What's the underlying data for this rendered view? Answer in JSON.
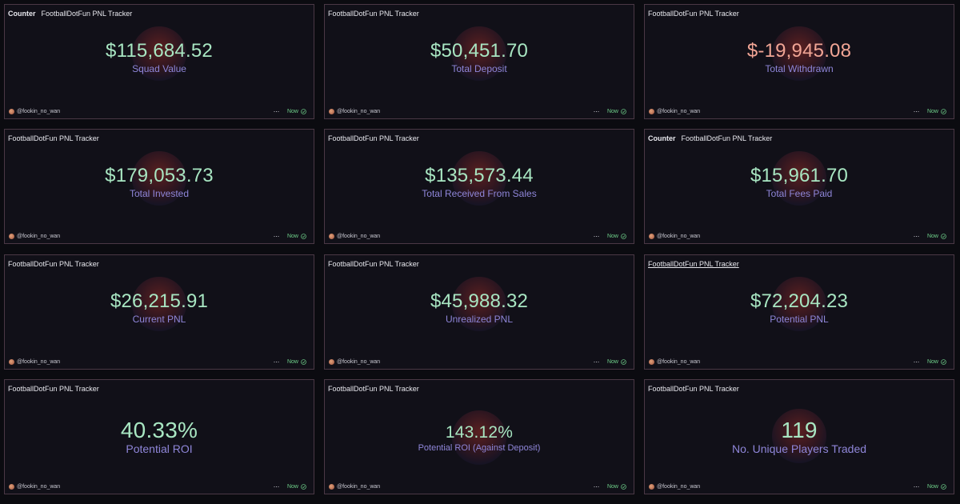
{
  "cards": [
    {
      "prefix": "Counter",
      "title": "FootballDotFun PNL Tracker",
      "value": "$115,684.52",
      "label": "Squad Value",
      "user": "@fookin_no_wan",
      "status": "Now"
    },
    {
      "prefix": "",
      "title": "FootballDotFun PNL Tracker",
      "value": "$50,451.70",
      "label": "Total Deposit",
      "user": "@fookin_no_wan",
      "status": "Now"
    },
    {
      "prefix": "",
      "title": "FootballDotFun PNL Tracker",
      "value": "$-19,945.08",
      "label": "Total Withdrawn",
      "user": "@fookin_no_wan",
      "status": "Now"
    },
    {
      "prefix": "",
      "title": "FootballDotFun PNL Tracker",
      "value": "$179,053.73",
      "label": "Total Invested",
      "user": "@fookin_no_wan",
      "status": "Now"
    },
    {
      "prefix": "",
      "title": "FootballDotFun PNL Tracker",
      "value": "$135,573.44",
      "label": "Total Received From Sales",
      "user": "@fookin_no_wan",
      "status": "Now"
    },
    {
      "prefix": "Counter",
      "title": "FootballDotFun PNL Tracker",
      "value": "$15,961.70",
      "label": "Total Fees Paid",
      "user": "@fookin_no_wan",
      "status": "Now"
    },
    {
      "prefix": "",
      "title": "FootballDotFun PNL Tracker",
      "value": "$26,215.91",
      "label": "Current PNL",
      "user": "@fookin_no_wan",
      "status": "Now"
    },
    {
      "prefix": "",
      "title": "FootballDotFun PNL Tracker",
      "value": "$45,988.32",
      "label": "Unrealized PNL",
      "user": "@fookin_no_wan",
      "status": "Now"
    },
    {
      "prefix": "",
      "title": "FootballDotFun PNL Tracker",
      "value": "$72,204.23",
      "label": "Potential PNL",
      "user": "@fookin_no_wan",
      "status": "Now"
    },
    {
      "prefix": "",
      "title": "FootballDotFun PNL Tracker",
      "value": "40.33%",
      "label": "Potential ROI",
      "user": "@fookin_no_wan",
      "status": "Now"
    },
    {
      "prefix": "",
      "title": "FootballDotFun PNL Tracker",
      "value": "143.12%",
      "label": "Potential ROI (Against Deposit)",
      "user": "@fookin_no_wan",
      "status": "Now"
    },
    {
      "prefix": "",
      "title": "FootballDotFun PNL Tracker",
      "value": "119",
      "label": "No. Unique Players Traded",
      "user": "@fookin_no_wan",
      "status": "Now"
    }
  ],
  "colors": {
    "positive": "#a8e6c2",
    "negative": "#f1a595",
    "label": "#8f86d9",
    "status": "#6fd08a",
    "border": "#4a3845",
    "background": "#111018"
  },
  "icons": {
    "more": "more-horizontal-icon",
    "status": "check-circle-icon",
    "avatar": "user-avatar"
  }
}
